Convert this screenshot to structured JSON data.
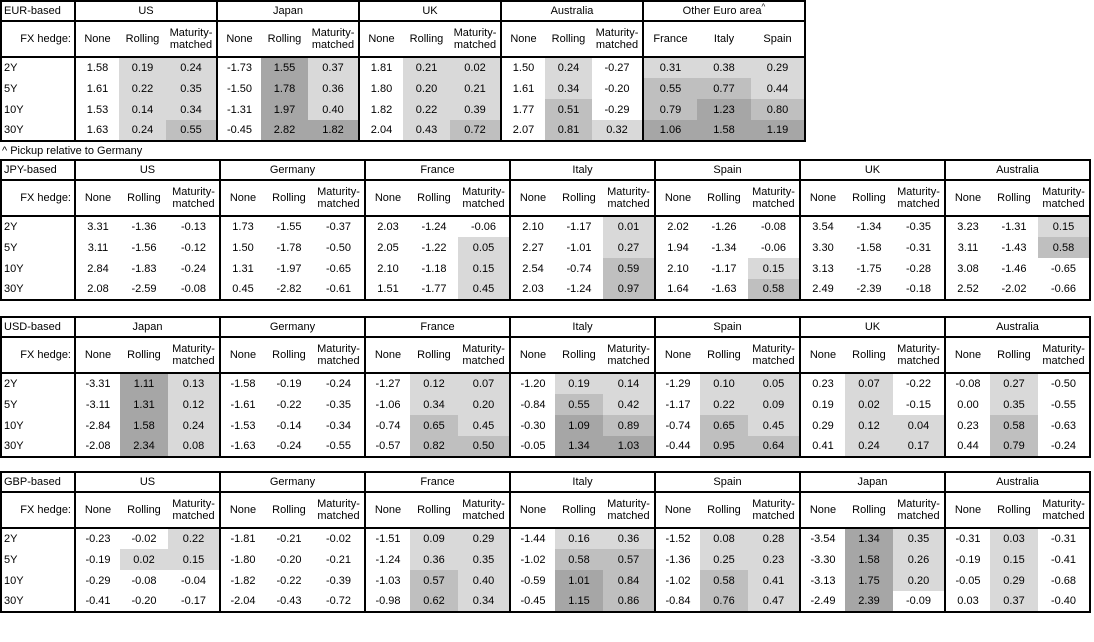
{
  "page": {
    "footnote": "^ Pickup relative to Germany"
  },
  "shading": {
    "light": "#d9d9d9",
    "medium": "#bfbfbf",
    "dark": "#a6a6a6"
  },
  "labels": {
    "fx_hedge": "FX hedge:",
    "tenors": [
      "2Y",
      "5Y",
      "10Y",
      "30Y"
    ],
    "hedge_types": [
      "None",
      "Rolling",
      "Maturity-matched"
    ]
  },
  "tables": [
    {
      "base": "EUR-based",
      "wide": false,
      "groups": [
        {
          "country": "US",
          "values": [
            [
              "1.58",
              "0.19",
              "0.24"
            ],
            [
              "1.61",
              "0.22",
              "0.35"
            ],
            [
              "1.53",
              "0.14",
              "0.34"
            ],
            [
              "1.63",
              "0.24",
              "0.55"
            ]
          ]
        },
        {
          "country": "Japan",
          "values": [
            [
              "-1.73",
              "1.55",
              "0.37"
            ],
            [
              "-1.50",
              "1.78",
              "0.36"
            ],
            [
              "-1.31",
              "1.97",
              "0.40"
            ],
            [
              "-0.45",
              "2.82",
              "1.82"
            ]
          ]
        },
        {
          "country": "UK",
          "values": [
            [
              "1.81",
              "0.21",
              "0.02"
            ],
            [
              "1.80",
              "0.20",
              "0.21"
            ],
            [
              "1.82",
              "0.22",
              "0.39"
            ],
            [
              "2.04",
              "0.43",
              "0.72"
            ]
          ]
        },
        {
          "country": "Australia",
          "values": [
            [
              "1.50",
              "0.24",
              "-0.27"
            ],
            [
              "1.61",
              "0.34",
              "-0.20"
            ],
            [
              "1.77",
              "0.51",
              "-0.29"
            ],
            [
              "2.07",
              "0.81",
              "0.32"
            ]
          ]
        },
        {
          "country": "Other Euro area",
          "sup": "^",
          "subcols": [
            "France",
            "Italy",
            "Spain"
          ],
          "values": [
            [
              "0.31",
              "0.38",
              "0.29"
            ],
            [
              "0.55",
              "0.77",
              "0.44"
            ],
            [
              "0.79",
              "1.23",
              "0.80"
            ],
            [
              "1.06",
              "1.58",
              "1.19"
            ]
          ]
        }
      ]
    },
    {
      "base": "JPY-based",
      "wide": true,
      "groups": [
        {
          "country": "US",
          "values": [
            [
              "3.31",
              "-1.36",
              "-0.13"
            ],
            [
              "3.11",
              "-1.56",
              "-0.12"
            ],
            [
              "2.84",
              "-1.83",
              "-0.24"
            ],
            [
              "2.08",
              "-2.59",
              "-0.08"
            ]
          ]
        },
        {
          "country": "Germany",
          "values": [
            [
              "1.73",
              "-1.55",
              "-0.37"
            ],
            [
              "1.50",
              "-1.78",
              "-0.50"
            ],
            [
              "1.31",
              "-1.97",
              "-0.65"
            ],
            [
              "0.45",
              "-2.82",
              "-0.61"
            ]
          ]
        },
        {
          "country": "France",
          "values": [
            [
              "2.03",
              "-1.24",
              "-0.06"
            ],
            [
              "2.05",
              "-1.22",
              "0.05"
            ],
            [
              "2.10",
              "-1.18",
              "0.15"
            ],
            [
              "1.51",
              "-1.77",
              "0.45"
            ]
          ]
        },
        {
          "country": "Italy",
          "values": [
            [
              "2.10",
              "-1.17",
              "0.01"
            ],
            [
              "2.27",
              "-1.01",
              "0.27"
            ],
            [
              "2.54",
              "-0.74",
              "0.59"
            ],
            [
              "2.03",
              "-1.24",
              "0.97"
            ]
          ]
        },
        {
          "country": "Spain",
          "values": [
            [
              "2.02",
              "-1.26",
              "-0.08"
            ],
            [
              "1.94",
              "-1.34",
              "-0.06"
            ],
            [
              "2.10",
              "-1.17",
              "0.15"
            ],
            [
              "1.64",
              "-1.63",
              "0.58"
            ]
          ]
        },
        {
          "country": "UK",
          "values": [
            [
              "3.54",
              "-1.34",
              "-0.35"
            ],
            [
              "3.30",
              "-1.58",
              "-0.31"
            ],
            [
              "3.13",
              "-1.75",
              "-0.28"
            ],
            [
              "2.49",
              "-2.39",
              "-0.18"
            ]
          ]
        },
        {
          "country": "Australia",
          "values": [
            [
              "3.23",
              "-1.31",
              "0.15"
            ],
            [
              "3.11",
              "-1.43",
              "0.58"
            ],
            [
              "3.08",
              "-1.46",
              "-0.65"
            ],
            [
              "2.52",
              "-2.02",
              "-0.66"
            ]
          ]
        }
      ]
    },
    {
      "base": "USD-based",
      "wide": true,
      "groups": [
        {
          "country": "Japan",
          "values": [
            [
              "-3.31",
              "1.11",
              "0.13"
            ],
            [
              "-3.11",
              "1.31",
              "0.12"
            ],
            [
              "-2.84",
              "1.58",
              "0.24"
            ],
            [
              "-2.08",
              "2.34",
              "0.08"
            ]
          ]
        },
        {
          "country": "Germany",
          "values": [
            [
              "-1.58",
              "-0.19",
              "-0.24"
            ],
            [
              "-1.61",
              "-0.22",
              "-0.35"
            ],
            [
              "-1.53",
              "-0.14",
              "-0.34"
            ],
            [
              "-1.63",
              "-0.24",
              "-0.55"
            ]
          ]
        },
        {
          "country": "France",
          "values": [
            [
              "-1.27",
              "0.12",
              "0.07"
            ],
            [
              "-1.06",
              "0.34",
              "0.20"
            ],
            [
              "-0.74",
              "0.65",
              "0.45"
            ],
            [
              "-0.57",
              "0.82",
              "0.50"
            ]
          ]
        },
        {
          "country": "Italy",
          "values": [
            [
              "-1.20",
              "0.19",
              "0.14"
            ],
            [
              "-0.84",
              "0.55",
              "0.42"
            ],
            [
              "-0.30",
              "1.09",
              "0.89"
            ],
            [
              "-0.05",
              "1.34",
              "1.03"
            ]
          ]
        },
        {
          "country": "Spain",
          "values": [
            [
              "-1.29",
              "0.10",
              "0.05"
            ],
            [
              "-1.17",
              "0.22",
              "0.09"
            ],
            [
              "-0.74",
              "0.65",
              "0.45"
            ],
            [
              "-0.44",
              "0.95",
              "0.64"
            ]
          ]
        },
        {
          "country": "UK",
          "values": [
            [
              "0.23",
              "0.07",
              "-0.22"
            ],
            [
              "0.19",
              "0.02",
              "-0.15"
            ],
            [
              "0.29",
              "0.12",
              "0.04"
            ],
            [
              "0.41",
              "0.24",
              "0.17"
            ]
          ]
        },
        {
          "country": "Australia",
          "values": [
            [
              "-0.08",
              "0.27",
              "-0.50"
            ],
            [
              "0.00",
              "0.35",
              "-0.55"
            ],
            [
              "0.23",
              "0.58",
              "-0.63"
            ],
            [
              "0.44",
              "0.79",
              "-0.24"
            ]
          ]
        }
      ]
    },
    {
      "base": "GBP-based",
      "wide": true,
      "groups": [
        {
          "country": "US",
          "values": [
            [
              "-0.23",
              "-0.02",
              "0.22"
            ],
            [
              "-0.19",
              "0.02",
              "0.15"
            ],
            [
              "-0.29",
              "-0.08",
              "-0.04"
            ],
            [
              "-0.41",
              "-0.20",
              "-0.17"
            ]
          ]
        },
        {
          "country": "Germany",
          "values": [
            [
              "-1.81",
              "-0.21",
              "-0.02"
            ],
            [
              "-1.80",
              "-0.20",
              "-0.21"
            ],
            [
              "-1.82",
              "-0.22",
              "-0.39"
            ],
            [
              "-2.04",
              "-0.43",
              "-0.72"
            ]
          ]
        },
        {
          "country": "France",
          "values": [
            [
              "-1.51",
              "0.09",
              "0.29"
            ],
            [
              "-1.24",
              "0.36",
              "0.35"
            ],
            [
              "-1.03",
              "0.57",
              "0.40"
            ],
            [
              "-0.98",
              "0.62",
              "0.34"
            ]
          ]
        },
        {
          "country": "Italy",
          "values": [
            [
              "-1.44",
              "0.16",
              "0.36"
            ],
            [
              "-1.02",
              "0.58",
              "0.57"
            ],
            [
              "-0.59",
              "1.01",
              "0.84"
            ],
            [
              "-0.45",
              "1.15",
              "0.86"
            ]
          ]
        },
        {
          "country": "Spain",
          "values": [
            [
              "-1.52",
              "0.08",
              "0.28"
            ],
            [
              "-1.36",
              "0.25",
              "0.23"
            ],
            [
              "-1.02",
              "0.58",
              "0.41"
            ],
            [
              "-0.84",
              "0.76",
              "0.47"
            ]
          ]
        },
        {
          "country": "Japan",
          "values": [
            [
              "-3.54",
              "1.34",
              "0.35"
            ],
            [
              "-3.30",
              "1.58",
              "0.26"
            ],
            [
              "-3.13",
              "1.75",
              "0.20"
            ],
            [
              "-2.49",
              "2.39",
              "-0.09"
            ]
          ]
        },
        {
          "country": "Australia",
          "values": [
            [
              "-0.31",
              "0.03",
              "-0.31"
            ],
            [
              "-0.19",
              "0.15",
              "-0.41"
            ],
            [
              "-0.05",
              "0.29",
              "-0.68"
            ],
            [
              "0.03",
              "0.37",
              "-0.40"
            ]
          ]
        }
      ]
    }
  ]
}
